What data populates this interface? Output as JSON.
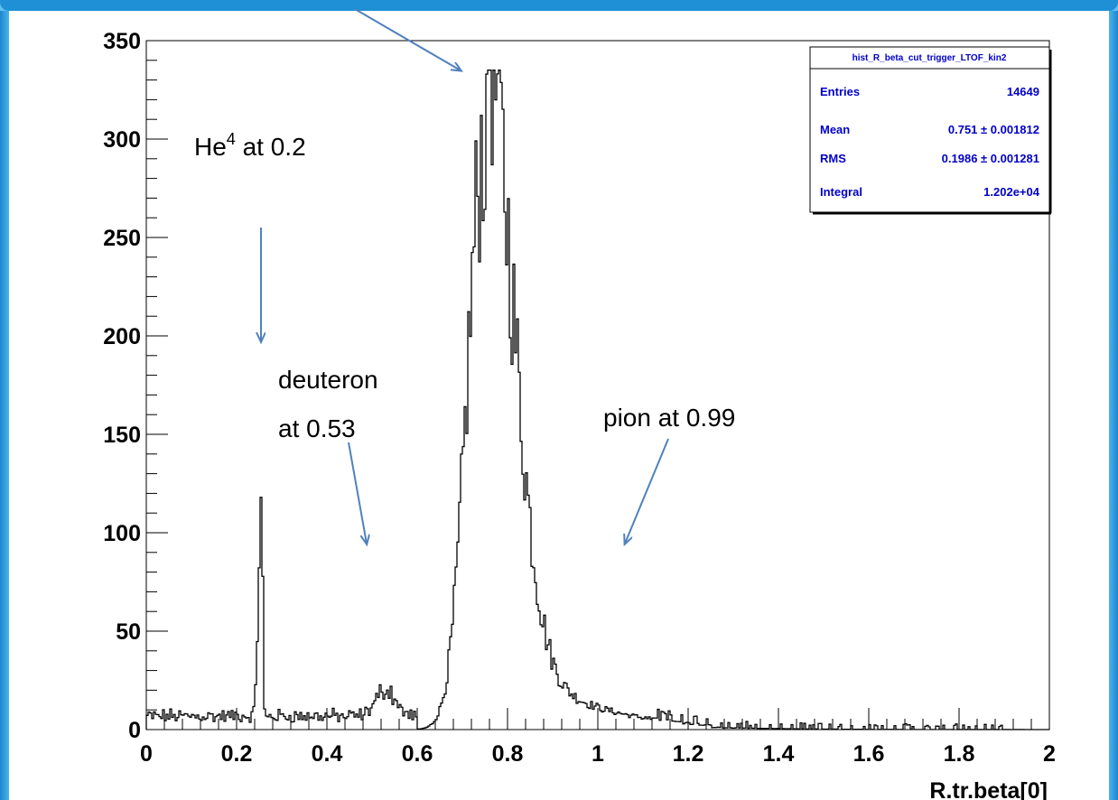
{
  "chart_data": {
    "type": "bar",
    "xlabel": "R.tr.beta[0]",
    "ylabel": "",
    "xlim": [
      0,
      2
    ],
    "ylim": [
      0,
      350
    ],
    "x_ticks": [
      "0",
      "0.2",
      "0.4",
      "0.6",
      "0.8",
      "1",
      "1.2",
      "1.4",
      "1.6",
      "1.8",
      "2"
    ],
    "y_ticks": [
      "0",
      "50",
      "100",
      "150",
      "200",
      "250",
      "300",
      "350"
    ],
    "series": [
      {
        "peaks": [
          {
            "x": 0.25,
            "y": 118
          },
          {
            "x": 0.53,
            "y": 28
          },
          {
            "x": 0.751,
            "y": 333
          }
        ]
      }
    ],
    "stats_box": {
      "title": "hist_R_beta_cut_trigger_LTOF_kin2",
      "rows": [
        {
          "label": "Entries",
          "value": "14649"
        },
        {
          "label": "Mean",
          "value": "0.751 ± 0.001812"
        },
        {
          "label": "RMS",
          "value": "0.1986 ± 0.001281"
        },
        {
          "label": "Integral",
          "value": "1.202e+04"
        }
      ]
    },
    "annotations": [
      {
        "text": "He",
        "sup": "4",
        "suffix": " at  0.2"
      },
      {
        "lines": [
          "deuteron",
          "at 0.53"
        ]
      },
      {
        "text": "pion at 0.99"
      }
    ]
  },
  "colors": {
    "frame": "#2b98dc",
    "arrow": "#4f81bd",
    "stats_text": "#0000c8",
    "histogram": "#000000"
  }
}
